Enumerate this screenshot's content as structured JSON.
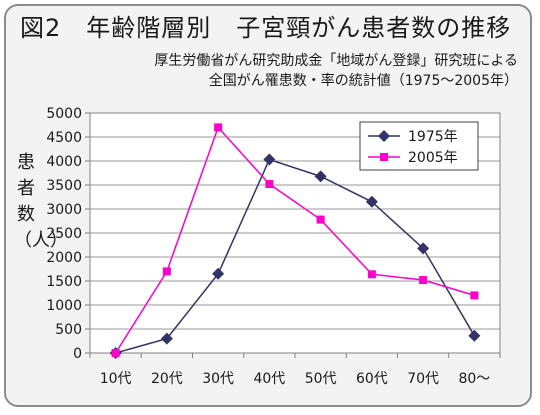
{
  "chart_data": {
    "type": "line",
    "title": "図2　年齢階層別　子宮頸がん患者数の推移",
    "subtitle_lines": [
      "厚生労働省がん研究助成金「地域がん登録」研究班による",
      "全国がん罹患数・率の統計値（1975～2005年）"
    ],
    "xlabel": "",
    "ylabel": "患者数（人）",
    "categories": [
      "10代",
      "20代",
      "30代",
      "40代",
      "50代",
      "60代",
      "70代",
      "80～"
    ],
    "ylim": [
      0,
      5000
    ],
    "yticks": [
      0,
      500,
      1000,
      1500,
      2000,
      2500,
      3000,
      3500,
      4000,
      4500,
      5000
    ],
    "grid": "horizontal",
    "legend_position": "top-right",
    "series": [
      {
        "name": "1975年",
        "color": "#333366",
        "marker": "diamond",
        "values": [
          0,
          300,
          1650,
          4030,
          3680,
          3150,
          2180,
          360
        ]
      },
      {
        "name": "2005年",
        "color": "#ff00cc",
        "marker": "square",
        "values": [
          0,
          1700,
          4700,
          3520,
          2780,
          1640,
          1520,
          1200
        ]
      }
    ]
  }
}
